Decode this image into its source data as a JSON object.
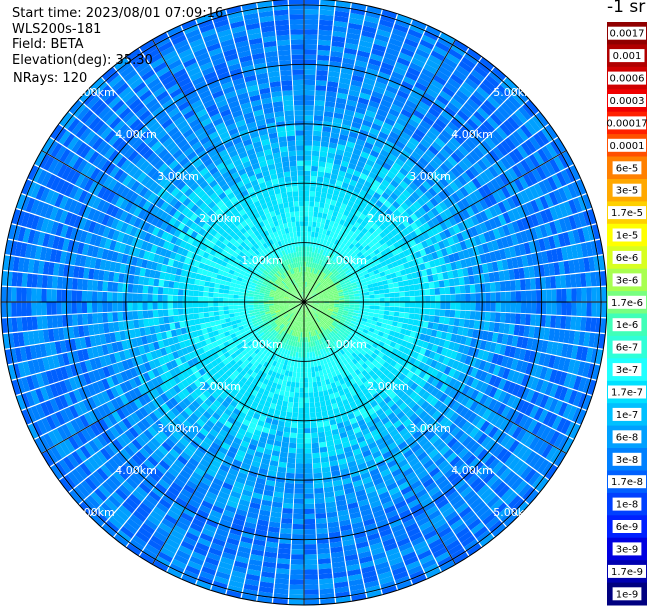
{
  "header": {
    "start_time": "Start time: 2023/08/01 07:09:16",
    "instrument": "WLS200s-181",
    "field": "Field: BETA",
    "elevation": "Elevation(deg): 35.30",
    "nrays": "NRays: 120"
  },
  "colorbar": {
    "unit": "-1 sr",
    "labels": [
      "0.0017",
      "0.001",
      "0.0006",
      "0.0003",
      "0.00017",
      "0.0001",
      "6e-5",
      "3e-5",
      "1.7e-5",
      "1e-5",
      "6e-6",
      "3e-6",
      "1.7e-6",
      "1e-6",
      "6e-7",
      "3e-7",
      "1.7e-7",
      "1e-7",
      "6e-8",
      "3e-8",
      "1.7e-8",
      "1e-8",
      "6e-9",
      "3e-9",
      "1.7e-9",
      "1e-9"
    ],
    "colors": [
      "#900000",
      "#b00000",
      "#d00000",
      "#f00000",
      "#ff2000",
      "#ff5000",
      "#ff8000",
      "#ffa800",
      "#ffd000",
      "#ffff00",
      "#d8ff20",
      "#a8ff50",
      "#78ff80",
      "#40ffb8",
      "#30ffd8",
      "#20ffff",
      "#00e0ff",
      "#00c0ff",
      "#00a0ff",
      "#0080ff",
      "#0060ff",
      "#0040ff",
      "#0020ff",
      "#0000e0",
      "#0000b0",
      "#000080"
    ]
  },
  "chart_data": {
    "type": "heatmap",
    "projection": "polar (PPI)",
    "field": "BETA",
    "nrays": 120,
    "range_rings_km": [
      1,
      2,
      3,
      4,
      5
    ],
    "ring_labels": [
      "1.00km",
      "2.00km",
      "3.00km",
      "4.00km",
      "5.00km"
    ],
    "max_range_km": 5.1,
    "azimuth_spokes_deg": [
      0,
      30,
      60,
      90,
      120,
      150,
      180,
      210,
      240,
      270,
      300,
      330
    ],
    "range_profile": [
      {
        "range_km": 0.5,
        "value": "1.7e-6"
      },
      {
        "range_km": 1.0,
        "value": "3e-7"
      },
      {
        "range_km": 2.0,
        "value": "1.7e-7"
      },
      {
        "range_km": 3.0,
        "value": "6e-8"
      },
      {
        "range_km": 4.0,
        "value": "3e-8"
      },
      {
        "range_km": 5.0,
        "value": "3e-8"
      }
    ]
  }
}
